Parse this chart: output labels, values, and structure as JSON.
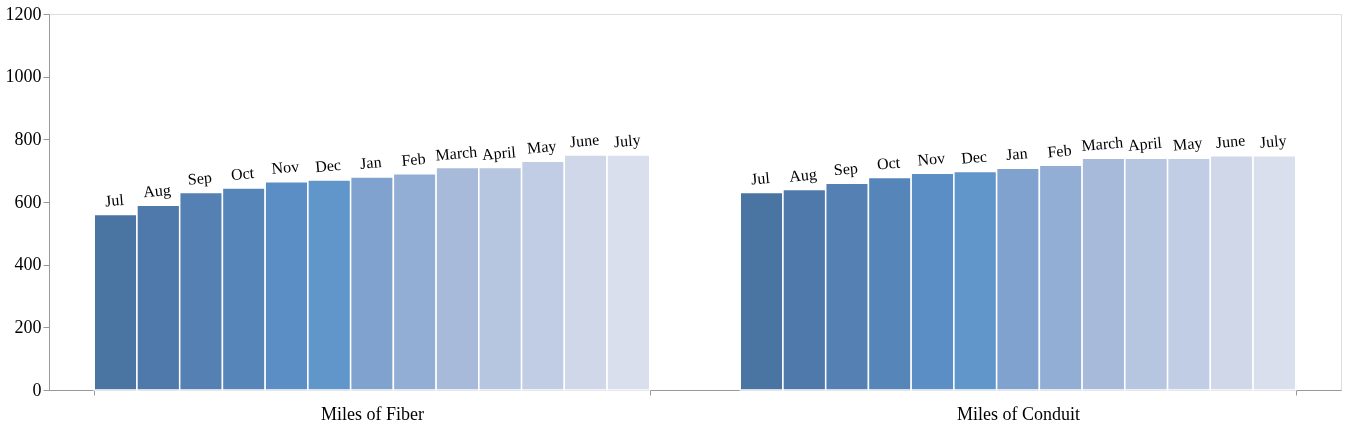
{
  "chart_data": {
    "type": "bar",
    "categories": [
      "Miles of Fiber",
      "Miles of Conduit"
    ],
    "series": [
      {
        "name": "Jul",
        "color": "#4a74a2",
        "values": [
          560,
          630
        ]
      },
      {
        "name": "Aug",
        "color": "#4f79aa",
        "values": [
          590,
          640
        ]
      },
      {
        "name": "Sep",
        "color": "#5480b3",
        "values": [
          630,
          660
        ]
      },
      {
        "name": "Oct",
        "color": "#5686b9",
        "values": [
          645,
          678
        ]
      },
      {
        "name": "Nov",
        "color": "#5b8ec4",
        "values": [
          665,
          692
        ]
      },
      {
        "name": "Dec",
        "color": "#6096c9",
        "values": [
          670,
          697
        ]
      },
      {
        "name": "Jan",
        "color": "#7fa3ce",
        "values": [
          680,
          708
        ]
      },
      {
        "name": "Feb",
        "color": "#93aed4",
        "values": [
          690,
          717
        ]
      },
      {
        "name": "March",
        "color": "#a8bad9",
        "values": [
          710,
          740
        ]
      },
      {
        "name": "April",
        "color": "#b6c5e0",
        "values": [
          710,
          740
        ]
      },
      {
        "name": "May",
        "color": "#c1cde5",
        "values": [
          730,
          740
        ]
      },
      {
        "name": "June",
        "color": "#cfd7e8",
        "values": [
          750,
          748
        ]
      },
      {
        "name": "July",
        "color": "#d9dfec",
        "values": [
          750,
          748
        ]
      }
    ],
    "ylim": [
      0,
      1200
    ],
    "yticks": [
      0,
      200,
      400,
      600,
      800,
      1000,
      1200
    ],
    "grid": false,
    "legend": false
  }
}
